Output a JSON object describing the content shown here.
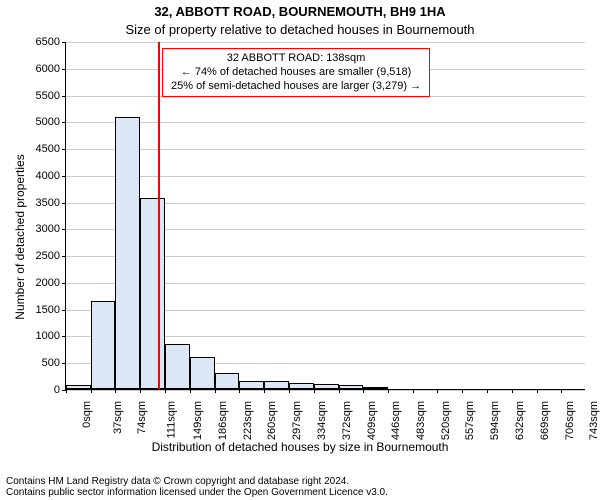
{
  "title_line1": "32, ABBOTT ROAD, BOURNEMOUTH, BH9 1HA",
  "title_line2": "Size of property relative to detached houses in Bournemouth",
  "ylabel": "Number of detached properties",
  "xlabel": "Distribution of detached houses by size in Bournemouth",
  "footer_line1": "Contains HM Land Registry data © Crown copyright and database right 2024.",
  "footer_line2": "Contains public sector information licensed under the Open Government Licence v3.0.",
  "chart": {
    "type": "histogram",
    "background_color": "#ffffff",
    "grid_color": "#cccccc",
    "axis_color": "#000000",
    "bar_fill": "#dbe7f5",
    "bar_border": "#000000",
    "bar_border_width": 1,
    "marker_color": "#ff0000",
    "annot_border_color": "#ff0000",
    "ylim": [
      0,
      6500
    ],
    "yticks": [
      0,
      500,
      1000,
      1500,
      2000,
      2500,
      3000,
      3500,
      4000,
      4500,
      5000,
      5500,
      6000,
      6500
    ],
    "xlim": [
      0,
      780
    ],
    "xticks": [
      0,
      37,
      74,
      111,
      149,
      186,
      223,
      260,
      297,
      334,
      372,
      409,
      446,
      483,
      520,
      557,
      594,
      632,
      669,
      706,
      743
    ],
    "x_unit": "sqm",
    "bars": [
      {
        "x0": 0,
        "x1": 37,
        "value": 80
      },
      {
        "x0": 37,
        "x1": 74,
        "value": 1650
      },
      {
        "x0": 74,
        "x1": 111,
        "value": 5080
      },
      {
        "x0": 111,
        "x1": 149,
        "value": 3570
      },
      {
        "x0": 149,
        "x1": 186,
        "value": 850
      },
      {
        "x0": 186,
        "x1": 223,
        "value": 600
      },
      {
        "x0": 223,
        "x1": 260,
        "value": 300
      },
      {
        "x0": 260,
        "x1": 297,
        "value": 150
      },
      {
        "x0": 297,
        "x1": 334,
        "value": 150
      },
      {
        "x0": 334,
        "x1": 372,
        "value": 120
      },
      {
        "x0": 372,
        "x1": 409,
        "value": 100
      },
      {
        "x0": 409,
        "x1": 446,
        "value": 70
      },
      {
        "x0": 446,
        "x1": 483,
        "value": 40
      }
    ],
    "marker_x": 138,
    "annotation": {
      "line1": "32 ABBOTT ROAD: 138sqm",
      "line2": "← 74% of detached houses are smaller (9,518)",
      "line3": "25% of semi-detached houses are larger (3,279) →"
    },
    "title_fontsize": 13,
    "label_fontsize": 12,
    "tick_fontsize": 11,
    "annot_fontsize": 11,
    "footer_fontsize": 10
  }
}
